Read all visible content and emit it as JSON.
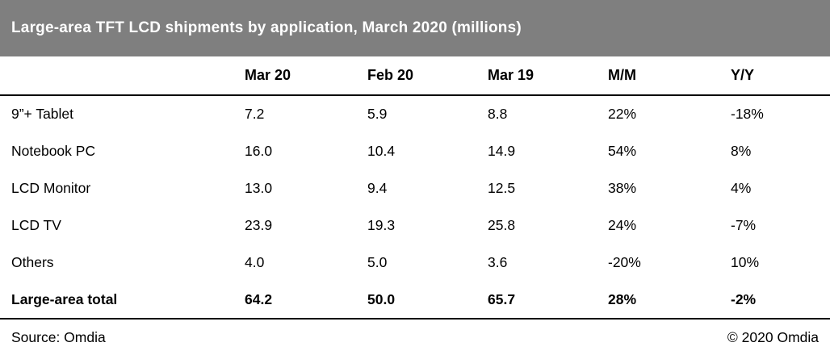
{
  "title": "Large-area TFT LCD shipments by application, March 2020 (millions)",
  "colors": {
    "title_bg": "#7f7f7f",
    "title_text": "#ffffff",
    "text": "#000000",
    "rule": "#000000",
    "background": "#ffffff"
  },
  "chart_data": {
    "type": "table",
    "title": "Large-area TFT LCD shipments by application, March 2020 (millions)",
    "columns": [
      "",
      "Mar 20",
      "Feb 20",
      "Mar 19",
      "M/M",
      "Y/Y"
    ],
    "rows": [
      {
        "label": "9”+ Tablet",
        "values": [
          "7.2",
          "5.9",
          "8.8",
          "22%",
          "-18%"
        ],
        "bold": false
      },
      {
        "label": "Notebook PC",
        "values": [
          "16.0",
          "10.4",
          "14.9",
          "54%",
          "8%"
        ],
        "bold": false
      },
      {
        "label": "LCD Monitor",
        "values": [
          "13.0",
          "9.4",
          "12.5",
          "38%",
          "4%"
        ],
        "bold": false
      },
      {
        "label": "LCD TV",
        "values": [
          "23.9",
          "19.3",
          "25.8",
          "24%",
          "-7%"
        ],
        "bold": false
      },
      {
        "label": "Others",
        "values": [
          "4.0",
          "5.0",
          "3.6",
          "-20%",
          "10%"
        ],
        "bold": false
      },
      {
        "label": "Large-area total",
        "values": [
          "64.2",
          "50.0",
          "65.7",
          "28%",
          "-2%"
        ],
        "bold": true
      }
    ]
  },
  "footer": {
    "source": "Source: Omdia",
    "copyright": "© 2020 Omdia"
  }
}
